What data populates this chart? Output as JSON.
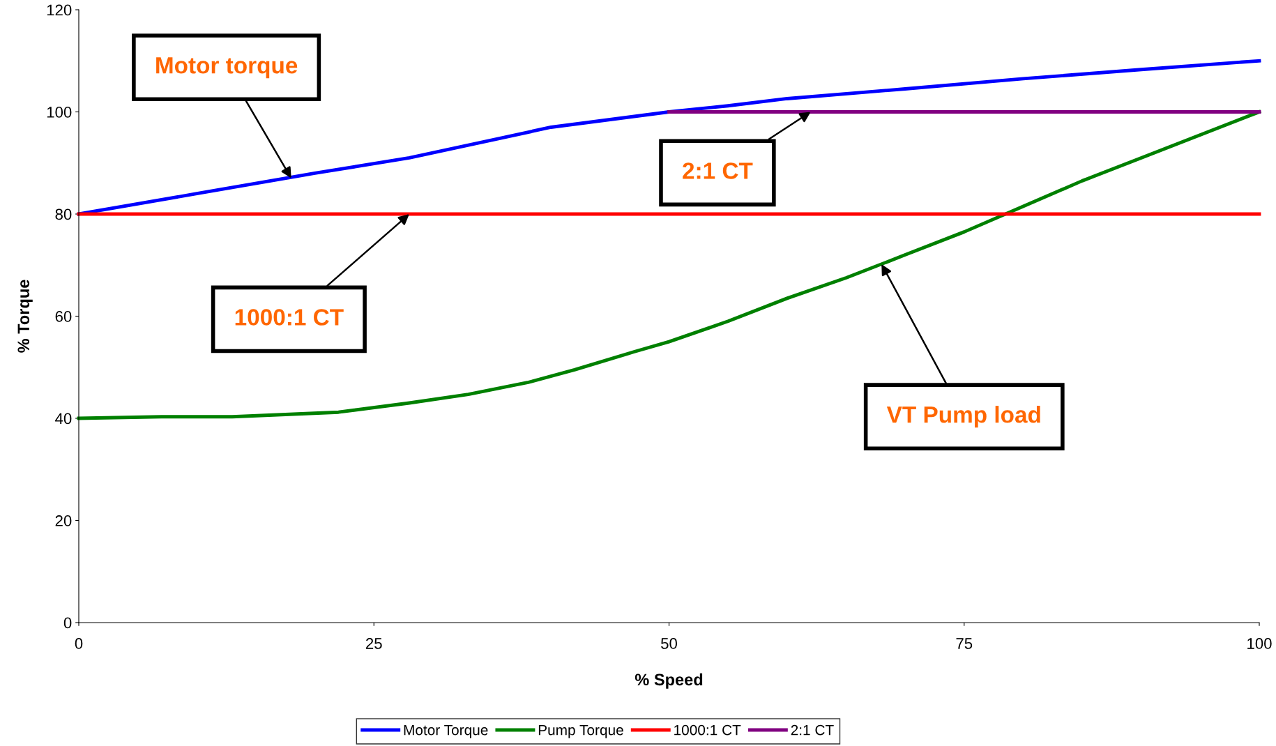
{
  "chart_data": {
    "type": "line",
    "xlabel": "% Speed",
    "ylabel": "% Torque",
    "xlim": [
      0,
      100
    ],
    "ylim": [
      0,
      120
    ],
    "xticks": [
      0,
      25,
      50,
      75,
      100
    ],
    "yticks": [
      0,
      20,
      40,
      60,
      80,
      100,
      120
    ],
    "grid": false,
    "legend": "bottom",
    "marker": "none",
    "line_style": "solid",
    "series": [
      {
        "name": "Motor Torque",
        "color": "#0000ff",
        "x": [
          0,
          10,
          20,
          28,
          35,
          40,
          45,
          50,
          55,
          60,
          70,
          80,
          90,
          100
        ],
        "values": [
          80,
          84,
          88,
          91,
          94.5,
          97,
          98.5,
          100,
          101.2,
          102.6,
          104.5,
          106.5,
          108.3,
          110
        ]
      },
      {
        "name": "Pump Torque",
        "color": "#008000",
        "x": [
          0,
          7,
          13,
          22,
          28,
          33,
          38,
          42,
          47,
          50,
          55,
          60,
          65,
          70,
          75,
          80,
          85,
          90,
          95,
          100
        ],
        "values": [
          40,
          40.3,
          40.3,
          41.2,
          43,
          44.7,
          47,
          49.5,
          53,
          55,
          59,
          63.5,
          67.5,
          72,
          76.5,
          81.5,
          86.5,
          91,
          95.5,
          100
        ]
      },
      {
        "name": "1000:1 CT",
        "color": "#ff0000",
        "x": [
          0,
          100
        ],
        "values": [
          80,
          80
        ]
      },
      {
        "name": "2:1 CT",
        "color": "#800080",
        "x": [
          50,
          100
        ],
        "values": [
          100,
          100
        ]
      }
    ],
    "annotations": [
      {
        "text": "Motor torque",
        "x": 18,
        "y": 87
      },
      {
        "text": "2:1 CT",
        "x": 62,
        "y": 100
      },
      {
        "text": "1000:1 CT",
        "x": 28,
        "y": 80
      },
      {
        "text": "VT Pump load",
        "x": 68,
        "y": 70.2
      }
    ]
  }
}
